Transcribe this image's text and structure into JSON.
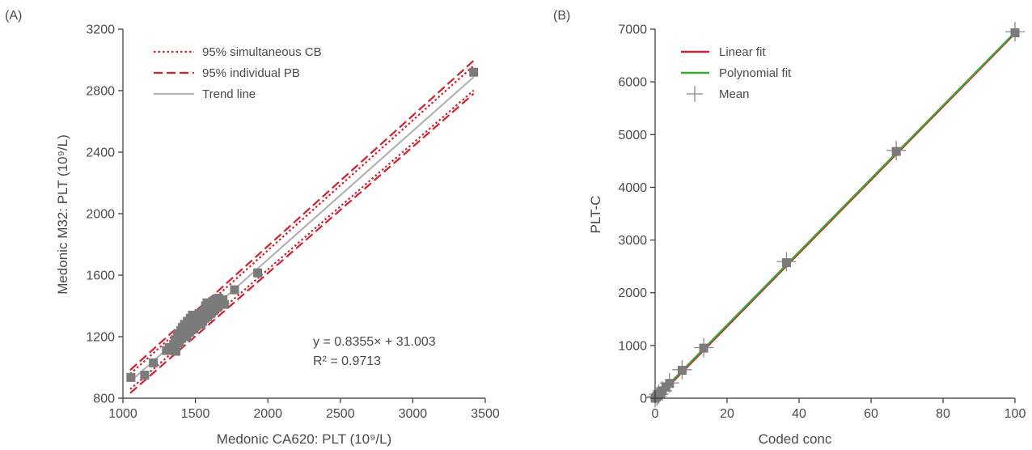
{
  "chart_data": [
    {
      "panel": "(A)",
      "type": "scatter",
      "xlabel": "Medonic CA620: PLT (10⁹/L)",
      "ylabel": "Medonic M32: PLT (10⁹/L)",
      "xlim": [
        1000,
        3500
      ],
      "ylim": [
        800,
        3200
      ],
      "xticks": [
        1000,
        1500,
        2000,
        2500,
        3000,
        3500
      ],
      "yticks": [
        800,
        1200,
        1600,
        2000,
        2400,
        2800,
        3200
      ],
      "grid": false,
      "legend_position": "top-left",
      "legend": [
        {
          "label": "95% simultaneous CB",
          "style": "dotted",
          "color": "#d2202f"
        },
        {
          "label": "95% individual PB",
          "style": "dashed",
          "color": "#d2202f"
        },
        {
          "label": "Trend line",
          "style": "solid",
          "color": "#b3b3b3"
        }
      ],
      "annotation": {
        "line1": "y = 0.8355× + 31.003",
        "line2": "R² = 0.9713"
      },
      "trend": {
        "slope": 0.8355,
        "intercept": 31.003
      },
      "bands": {
        "cb": {
          "lower": [
            [
              1050,
              858
            ],
            [
              3420,
              2802
            ]
          ],
          "upper": [
            [
              1050,
              958
            ],
            [
              3420,
              2962
            ]
          ]
        },
        "pb": {
          "lower": [
            [
              1050,
              833
            ],
            [
              3420,
              2780
            ]
          ],
          "upper": [
            [
              1050,
              983
            ],
            [
              3420,
              2995
            ]
          ]
        }
      },
      "points": [
        [
          1055,
          935
        ],
        [
          1150,
          950
        ],
        [
          1210,
          1030
        ],
        [
          1300,
          1110
        ],
        [
          1320,
          1130
        ],
        [
          1340,
          1120
        ],
        [
          1350,
          1150
        ],
        [
          1360,
          1180
        ],
        [
          1365,
          1105
        ],
        [
          1375,
          1200
        ],
        [
          1380,
          1220
        ],
        [
          1390,
          1160
        ],
        [
          1400,
          1240
        ],
        [
          1405,
          1190
        ],
        [
          1410,
          1260
        ],
        [
          1420,
          1210
        ],
        [
          1425,
          1280
        ],
        [
          1430,
          1240
        ],
        [
          1440,
          1200
        ],
        [
          1445,
          1300
        ],
        [
          1450,
          1255
        ],
        [
          1460,
          1230
        ],
        [
          1465,
          1320
        ],
        [
          1470,
          1270
        ],
        [
          1480,
          1340
        ],
        [
          1485,
          1290
        ],
        [
          1490,
          1250
        ],
        [
          1500,
          1310
        ],
        [
          1505,
          1270
        ],
        [
          1510,
          1330
        ],
        [
          1520,
          1290
        ],
        [
          1525,
          1350
        ],
        [
          1530,
          1310
        ],
        [
          1540,
          1280
        ],
        [
          1545,
          1340
        ],
        [
          1550,
          1300
        ],
        [
          1560,
          1370
        ],
        [
          1565,
          1320
        ],
        [
          1570,
          1400
        ],
        [
          1575,
          1350
        ],
        [
          1580,
          1420
        ],
        [
          1585,
          1330
        ],
        [
          1590,
          1380
        ],
        [
          1600,
          1410
        ],
        [
          1605,
          1350
        ],
        [
          1610,
          1390
        ],
        [
          1620,
          1430
        ],
        [
          1625,
          1370
        ],
        [
          1630,
          1410
        ],
        [
          1640,
          1440
        ],
        [
          1650,
          1390
        ],
        [
          1660,
          1450
        ],
        [
          1670,
          1420
        ],
        [
          1690,
          1440
        ],
        [
          1700,
          1410
        ],
        [
          1770,
          1505
        ],
        [
          1930,
          1615
        ],
        [
          3420,
          2920
        ]
      ]
    },
    {
      "panel": "(B)",
      "type": "scatter",
      "xlabel": "Coded conc",
      "ylabel": "PLT-C",
      "xlim": [
        0,
        100
      ],
      "ylim": [
        0,
        7000
      ],
      "xticks": [
        0,
        20,
        40,
        60,
        80,
        100
      ],
      "yticks": [
        0,
        1000,
        2000,
        3000,
        4000,
        5000,
        6000,
        7000
      ],
      "grid": false,
      "legend_position": "top-left",
      "legend": [
        {
          "label": "Linear fit",
          "style": "solid",
          "color": "#d2202f"
        },
        {
          "label": "Polynomial fit",
          "style": "solid",
          "color": "#3aaa35"
        },
        {
          "label": "Mean",
          "style": "plus",
          "color": "#888888"
        }
      ],
      "linear_fit": [
        [
          0,
          -30
        ],
        [
          100,
          6920
        ]
      ],
      "poly_fit": [
        [
          0,
          0
        ],
        [
          100,
          6940
        ]
      ],
      "points": [
        [
          0,
          0
        ],
        [
          0.3,
          20
        ],
        [
          0.6,
          40
        ],
        [
          1,
          70
        ],
        [
          1.5,
          105
        ],
        [
          2,
          140
        ],
        [
          3,
          210
        ],
        [
          4,
          280
        ],
        [
          7.5,
          530
        ],
        [
          13.5,
          950
        ],
        [
          36.5,
          2570
        ],
        [
          67,
          4680
        ],
        [
          100,
          6930
        ]
      ],
      "means": [
        [
          0,
          10
        ],
        [
          0.5,
          35
        ],
        [
          1,
          75
        ],
        [
          2,
          140
        ],
        [
          4,
          290
        ],
        [
          7.5,
          540
        ],
        [
          13.5,
          960
        ],
        [
          36.5,
          2590
        ],
        [
          67,
          4700
        ],
        [
          100,
          6950
        ]
      ]
    }
  ]
}
